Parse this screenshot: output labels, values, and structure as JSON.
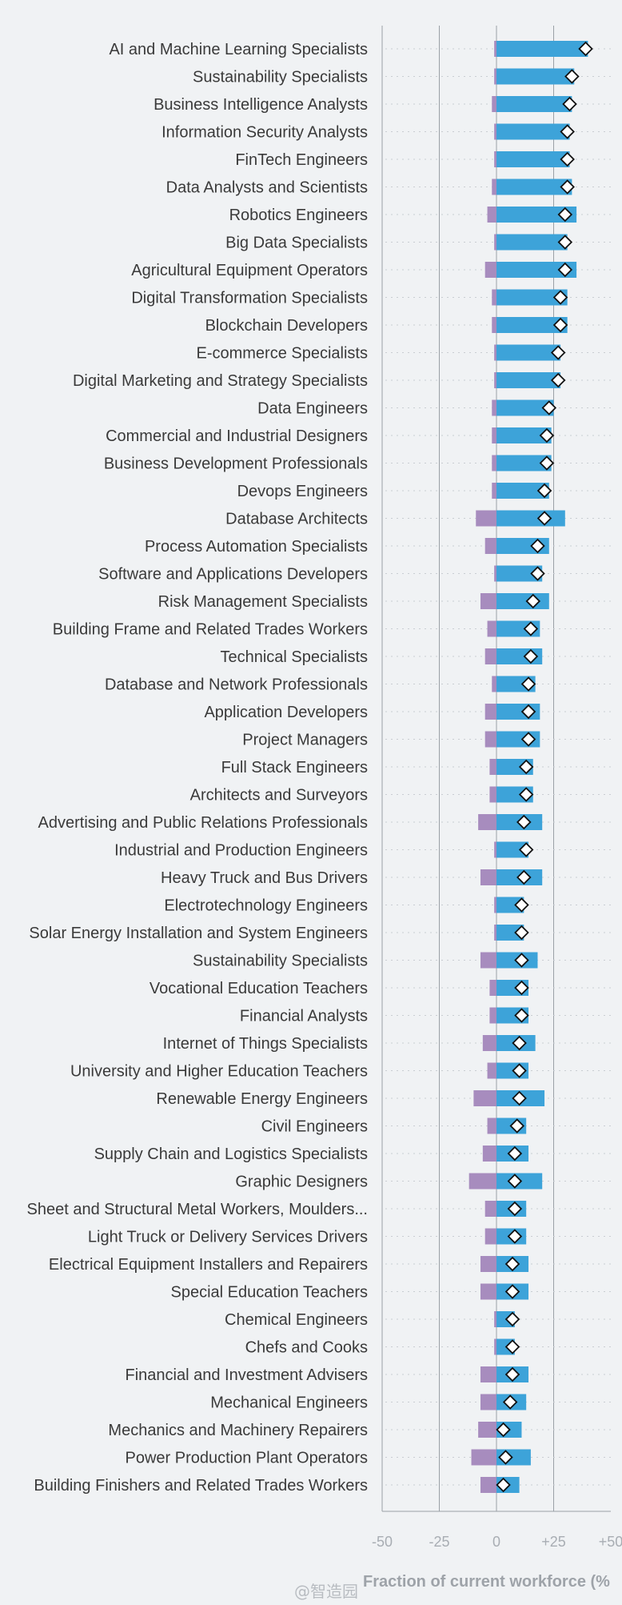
{
  "chart_data": {
    "type": "bar",
    "orientation": "horizontal",
    "title": "",
    "xlabel": "Fraction of current workforce (%",
    "ylabel": "",
    "xlim": [
      -50,
      50
    ],
    "x_ticks": [
      "-50",
      "-25",
      "0",
      "+25",
      "+50"
    ],
    "x_tick_values": [
      -50,
      -25,
      0,
      25,
      50
    ],
    "grid": "vertical lines at -25, 0, +25; dotted row guides",
    "legend": "none",
    "colors": {
      "decline_bar": "#a78cbe",
      "growth_bar": "#3da3d9",
      "net_marker_fill": "#ffffff",
      "net_marker_stroke": "#111111",
      "gridline": "#9aa0a6",
      "row_guide": "#c9cdd2"
    },
    "categories": [
      "AI and Machine Learning Specialists",
      "Sustainability Specialists",
      "Business Intelligence Analysts",
      "Information Security Analysts",
      "FinTech Engineers",
      "Data Analysts and Scientists",
      "Robotics Engineers",
      "Big Data Specialists",
      "Agricultural Equipment Operators",
      "Digital Transformation Specialists",
      "Blockchain Developers",
      "E-commerce Specialists",
      "Digital Marketing and Strategy Specialists",
      "Data Engineers",
      "Commercial and Industrial Designers",
      "Business Development Professionals",
      "Devops Engineers",
      "Database Architects",
      "Process Automation Specialists",
      "Software and Applications Developers",
      "Risk Management Specialists",
      "Building Frame and Related Trades Workers",
      "Technical Specialists",
      "Database and Network Professionals",
      "Application Developers",
      "Project Managers",
      "Full Stack Engineers",
      "Architects and Surveyors",
      "Advertising and Public Relations Professionals",
      "Industrial and Production Engineers",
      "Heavy Truck and Bus Drivers",
      "Electrotechnology Engineers",
      "Solar Energy Installation and System Engineers",
      "Sustainability Specialists",
      "Vocational Education Teachers",
      "Financial Analysts",
      "Internet of Things Specialists",
      "University and Higher Education Teachers",
      "Renewable Energy Engineers",
      "Civil Engineers",
      "Supply Chain and Logistics Specialists",
      "Graphic Designers",
      "Sheet and Structural Metal Workers, Moulders...",
      "Light Truck or Delivery Services Drivers",
      "Electrical Equipment Installers and Repairers",
      "Special Education Teachers",
      "Chemical Engineers",
      "Chefs and Cooks",
      "Financial and Investment Advisers",
      "Mechanical Engineers",
      "Mechanics and Machinery Repairers",
      "Power Production Plant Operators",
      "Building Finishers and Related Trades Workers"
    ],
    "series": [
      {
        "name": "",
        "role": "decline",
        "values": [
          -1,
          -1,
          -2,
          -1,
          -1,
          -2,
          -4,
          -1,
          -5,
          -2,
          -2,
          -1,
          -1,
          -2,
          -2,
          -2,
          -2,
          -9,
          -5,
          -1,
          -7,
          -4,
          -5,
          -2,
          -5,
          -5,
          -3,
          -3,
          -8,
          -1,
          -7,
          -1,
          -1,
          -7,
          -3,
          -3,
          -6,
          -4,
          -10,
          -4,
          -6,
          -12,
          -5,
          -5,
          -7,
          -7,
          -1,
          -1,
          -7,
          -7,
          -8,
          -11,
          -7
        ]
      },
      {
        "name": "",
        "role": "growth",
        "values": [
          40,
          34,
          33,
          32,
          32,
          33,
          35,
          31,
          35,
          31,
          31,
          28,
          28,
          25,
          24,
          24,
          23,
          30,
          23,
          20,
          23,
          19,
          20,
          17,
          19,
          19,
          16,
          16,
          20,
          14,
          20,
          12,
          12,
          18,
          14,
          14,
          17,
          14,
          21,
          13,
          14,
          20,
          13,
          13,
          14,
          14,
          8,
          8,
          14,
          13,
          11,
          15,
          10
        ]
      },
      {
        "name": "",
        "role": "net",
        "values": [
          39,
          33,
          32,
          31,
          31,
          31,
          30,
          30,
          30,
          28,
          28,
          27,
          27,
          23,
          22,
          22,
          21,
          21,
          18,
          18,
          16,
          15,
          15,
          14,
          14,
          14,
          13,
          13,
          12,
          13,
          12,
          11,
          11,
          11,
          11,
          11,
          10,
          10,
          10,
          9,
          8,
          8,
          8,
          8,
          7,
          7,
          7,
          7,
          7,
          6,
          3,
          4,
          3
        ]
      }
    ]
  },
  "footer": {
    "watermark": "@智造园"
  }
}
